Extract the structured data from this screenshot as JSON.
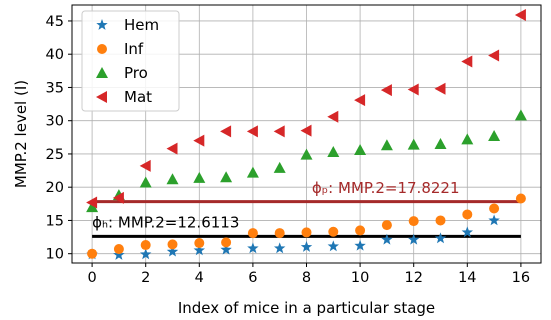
{
  "chart_data": {
    "type": "scatter",
    "xlabel": "Index of mice in a particular stage",
    "ylabel": "MMP.2 level (I)",
    "xlim": [
      -0.75,
      16.75
    ],
    "ylim": [
      8.6,
      47.4
    ],
    "xticks": [
      0,
      2,
      4,
      6,
      8,
      10,
      12,
      14,
      16
    ],
    "yticks": [
      10,
      15,
      20,
      25,
      30,
      35,
      40,
      45
    ],
    "grid": true,
    "legend_position": "top-left",
    "series": [
      {
        "name": "Hem",
        "marker": "star",
        "color": "#1f77b4",
        "x": [
          0,
          1,
          2,
          3,
          4,
          5,
          6,
          7,
          8,
          9,
          10,
          11,
          12,
          13,
          14,
          15
        ],
        "y": [
          9.9,
          9.8,
          9.9,
          10.3,
          10.5,
          10.6,
          10.8,
          10.8,
          11.0,
          11.1,
          11.2,
          12.1,
          12.1,
          12.3,
          13.2,
          15.0
        ]
      },
      {
        "name": "Inf",
        "marker": "circle",
        "color": "#ff7f0e",
        "x": [
          0,
          1,
          2,
          3,
          4,
          5,
          6,
          7,
          8,
          9,
          10,
          11,
          12,
          13,
          14,
          15,
          16
        ],
        "y": [
          10.0,
          10.7,
          11.3,
          11.4,
          11.6,
          11.7,
          13.1,
          13.1,
          13.2,
          13.3,
          13.5,
          14.3,
          14.9,
          15.0,
          15.9,
          16.8,
          18.3
        ]
      },
      {
        "name": "Pro",
        "marker": "triangle-up",
        "color": "#2ca02c",
        "x": [
          0,
          1,
          2,
          3,
          4,
          5,
          6,
          7,
          8,
          9,
          10,
          11,
          12,
          13,
          14,
          15,
          16
        ],
        "y": [
          17.0,
          18.8,
          20.7,
          21.2,
          21.4,
          21.5,
          22.2,
          22.9,
          24.9,
          25.3,
          25.6,
          26.3,
          26.4,
          26.5,
          27.2,
          27.7,
          30.8
        ]
      },
      {
        "name": "Mat",
        "marker": "triangle-left",
        "color": "#d62728",
        "x": [
          0,
          1,
          2,
          3,
          4,
          5,
          6,
          7,
          8,
          9,
          10,
          11,
          12,
          13,
          14,
          15,
          16
        ],
        "y": [
          17.7,
          18.4,
          23.2,
          25.8,
          27.0,
          28.4,
          28.4,
          28.4,
          28.5,
          30.6,
          33.1,
          34.6,
          34.7,
          34.8,
          38.9,
          39.8,
          45.9
        ]
      }
    ],
    "reference_lines": [
      {
        "label": "ϕₚ: MMP.2=17.8221",
        "y": 17.8221,
        "x_start": 0,
        "x_end": 16,
        "color": "#a52a2a",
        "label_color": "#a52a2a"
      },
      {
        "label": "ϕₕ: MMP.2=12.6113",
        "y": 12.6113,
        "x_start": 0,
        "x_end": 16,
        "color": "#000000",
        "label_color": "#000000"
      }
    ]
  }
}
